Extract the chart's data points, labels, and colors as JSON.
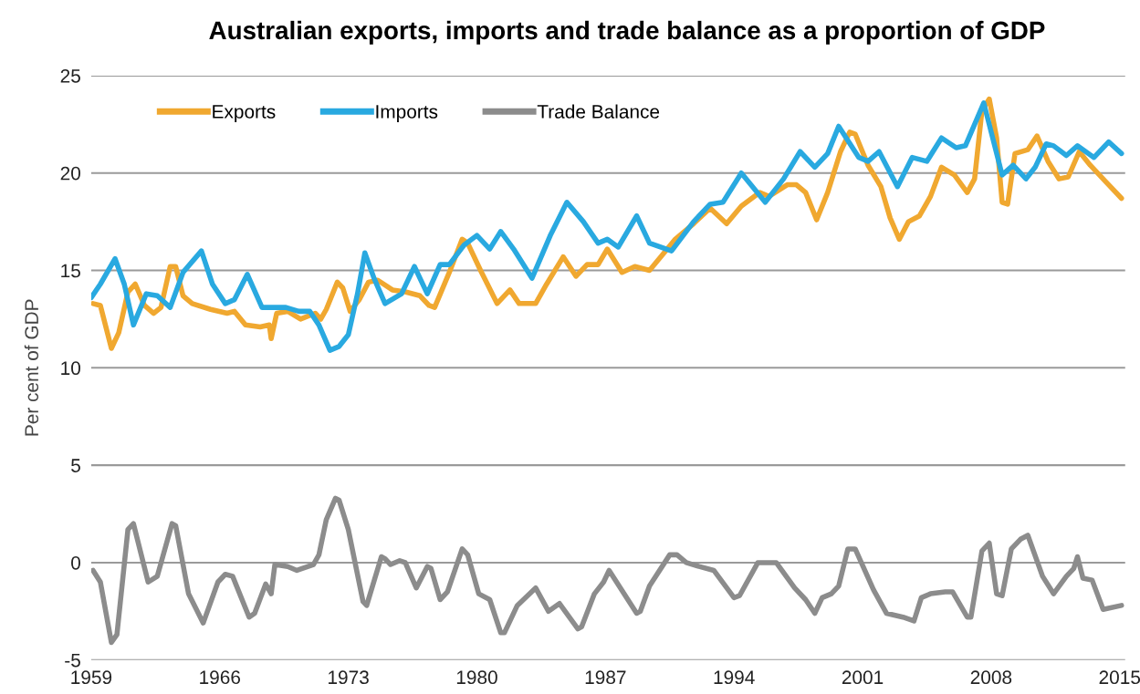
{
  "chart_data": {
    "type": "line",
    "title": "Australian exports, imports and trade balance as a proportion of GDP",
    "ylabel": "Per cent of GDP",
    "xlim": [
      1959,
      2015.3
    ],
    "xticks": [
      1959,
      1966,
      1973,
      1980,
      1987,
      1994,
      2001,
      2008,
      2015
    ],
    "ylim": [
      -5,
      25
    ],
    "yticks": [
      -5,
      0,
      5,
      10,
      15,
      20,
      25
    ],
    "grid": "y",
    "legend": "top left",
    "marker": "none",
    "line_style": "solid",
    "series": [
      {
        "name": "Exports",
        "color": "#f0a830",
        "x": [
          1959.1,
          1959.5,
          1960.1,
          1960.5,
          1961.0,
          1961.4,
          1961.9,
          1962.4,
          1962.8,
          1963.3,
          1963.6,
          1964.0,
          1964.5,
          1965.5,
          1966.4,
          1966.8,
          1967.4,
          1968.2,
          1968.7,
          1968.8,
          1969.1,
          1969.7,
          1970.4,
          1971.2,
          1971.5,
          1971.8,
          1972.4,
          1972.7,
          1973.1,
          1973.6,
          1974.1,
          1974.6,
          1975.4,
          1976.1,
          1976.9,
          1977.4,
          1977.7,
          1978.5,
          1979.2,
          1979.5,
          1980.2,
          1981.1,
          1981.8,
          1982.3,
          1983.2,
          1983.8,
          1984.7,
          1985.4,
          1986.0,
          1986.6,
          1987.1,
          1987.9,
          1988.6,
          1989.4,
          1990.1,
          1990.8,
          1991.8,
          1992.7,
          1993.6,
          1994.4,
          1995.4,
          1995.9,
          1996.9,
          1997.4,
          1997.9,
          1998.5,
          1999.1,
          1999.8,
          2000.3,
          2000.6,
          2001.3,
          2002.0,
          2002.5,
          2003.0,
          2003.5,
          2004.1,
          2004.7,
          2005.3,
          2006.0,
          2006.7,
          2007.1,
          2007.5,
          2007.9,
          2008.3,
          2008.6,
          2008.9,
          2009.3,
          2010.0,
          2010.5,
          2011.1,
          2011.7,
          2012.2,
          2012.8,
          2013.4,
          2014.2,
          2015.1
        ],
        "values": [
          13.3,
          13.2,
          11.0,
          11.8,
          13.9,
          14.3,
          13.2,
          12.8,
          13.1,
          15.2,
          15.2,
          13.7,
          13.3,
          13.0,
          12.8,
          12.9,
          12.2,
          12.1,
          12.2,
          11.5,
          12.8,
          12.9,
          12.5,
          12.8,
          12.5,
          13.0,
          14.4,
          14.1,
          12.9,
          13.5,
          14.4,
          14.5,
          14.0,
          13.9,
          13.7,
          13.2,
          13.1,
          14.9,
          16.6,
          16.4,
          15.0,
          13.3,
          14.0,
          13.3,
          13.3,
          14.3,
          15.7,
          14.7,
          15.3,
          15.3,
          16.1,
          14.9,
          15.2,
          15.0,
          15.8,
          16.6,
          17.4,
          18.2,
          17.4,
          18.3,
          19.0,
          18.8,
          19.4,
          19.4,
          19.0,
          17.6,
          19.0,
          21.1,
          22.1,
          22.0,
          20.4,
          19.3,
          17.7,
          16.6,
          17.5,
          17.8,
          18.8,
          20.3,
          19.9,
          19.0,
          19.7,
          23.2,
          23.8,
          21.8,
          18.5,
          18.4,
          21.0,
          21.2,
          21.9,
          20.6,
          19.7,
          19.8,
          21.1,
          20.4,
          19.6,
          18.7
        ]
      },
      {
        "name": "Imports",
        "color": "#29a9e0",
        "x": [
          1959.0,
          1959.5,
          1960.3,
          1960.8,
          1961.3,
          1962.0,
          1962.6,
          1963.3,
          1964.0,
          1965.0,
          1965.6,
          1966.3,
          1966.8,
          1967.5,
          1968.3,
          1968.9,
          1969.6,
          1970.3,
          1970.9,
          1971.4,
          1972.0,
          1972.5,
          1973.0,
          1973.5,
          1973.9,
          1974.4,
          1975.0,
          1975.9,
          1976.6,
          1977.3,
          1978.0,
          1978.5,
          1979.3,
          1980.0,
          1980.7,
          1981.3,
          1982.0,
          1983.0,
          1984.0,
          1984.9,
          1985.8,
          1986.6,
          1987.1,
          1987.7,
          1988.7,
          1989.4,
          1990.6,
          1991.8,
          1992.7,
          1993.4,
          1994.4,
          1995.7,
          1996.7,
          1997.6,
          1998.4,
          1999.1,
          1999.7,
          2000.8,
          2001.3,
          2001.9,
          2002.9,
          2003.7,
          2004.5,
          2005.3,
          2006.1,
          2006.6,
          2007.6,
          2008.6,
          2009.2,
          2009.9,
          2010.4,
          2011.0,
          2011.4,
          2012.1,
          2012.7,
          2013.6,
          2014.4,
          2015.1
        ],
        "values": [
          13.6,
          14.3,
          15.6,
          14.3,
          12.2,
          13.8,
          13.7,
          13.1,
          14.9,
          16.0,
          14.3,
          13.3,
          13.5,
          14.8,
          13.1,
          13.1,
          13.1,
          12.9,
          12.9,
          12.2,
          10.9,
          11.1,
          11.7,
          13.8,
          15.9,
          14.6,
          13.3,
          13.8,
          15.2,
          13.8,
          15.3,
          15.3,
          16.3,
          16.8,
          16.1,
          17.0,
          16.1,
          14.6,
          16.8,
          18.5,
          17.5,
          16.4,
          16.6,
          16.2,
          17.8,
          16.4,
          16.0,
          17.5,
          18.4,
          18.5,
          20.0,
          18.5,
          19.7,
          21.1,
          20.3,
          21.0,
          22.4,
          20.8,
          20.6,
          21.1,
          19.3,
          20.8,
          20.6,
          21.8,
          21.3,
          21.4,
          23.6,
          19.9,
          20.4,
          19.7,
          20.3,
          21.5,
          21.4,
          20.9,
          21.4,
          20.8,
          21.6,
          21.0
        ]
      },
      {
        "name": "Trade Balance",
        "color": "#8c8c8c",
        "x": [
          1959.1,
          1959.5,
          1960.1,
          1960.4,
          1961.0,
          1961.3,
          1962.1,
          1962.6,
          1963.4,
          1963.6,
          1964.3,
          1965.1,
          1965.9,
          1966.3,
          1966.7,
          1967.6,
          1967.9,
          1968.5,
          1968.8,
          1969.0,
          1969.7,
          1970.2,
          1971.1,
          1971.4,
          1971.8,
          1972.3,
          1972.5,
          1973.0,
          1973.8,
          1974.0,
          1974.8,
          1975.0,
          1975.3,
          1975.8,
          1976.1,
          1976.7,
          1977.3,
          1977.5,
          1978.0,
          1978.4,
          1979.2,
          1979.5,
          1980.1,
          1980.7,
          1981.3,
          1981.5,
          1982.2,
          1983.2,
          1983.9,
          1984.5,
          1985.5,
          1985.7,
          1986.4,
          1986.9,
          1987.2,
          1988.7,
          1988.9,
          1989.4,
          1990.5,
          1990.9,
          1991.4,
          1992.1,
          1992.9,
          1994.0,
          1994.3,
          1995.3,
          1996.3,
          1997.3,
          1997.9,
          1998.4,
          1998.8,
          1999.3,
          1999.7,
          2000.2,
          2000.6,
          2001.6,
          2002.3,
          2003.2,
          2003.8,
          2004.2,
          2004.7,
          2005.5,
          2005.9,
          2006.7,
          2006.9,
          2007.5,
          2007.9,
          2008.3,
          2008.6,
          2009.1,
          2009.6,
          2010.0,
          2010.8,
          2011.4,
          2012.1,
          2012.5,
          2012.7,
          2013.0,
          2013.5,
          2014.1,
          2015.1
        ],
        "values": [
          -0.4,
          -1.0,
          -4.1,
          -3.7,
          1.7,
          2.0,
          -1.0,
          -0.7,
          2.0,
          1.9,
          -1.6,
          -3.1,
          -1.0,
          -0.6,
          -0.7,
          -2.8,
          -2.6,
          -1.1,
          -1.6,
          -0.1,
          -0.2,
          -0.4,
          -0.1,
          0.4,
          2.2,
          3.3,
          3.2,
          1.7,
          -2.0,
          -2.2,
          0.3,
          0.2,
          -0.1,
          0.1,
          0.0,
          -1.3,
          -0.2,
          -0.3,
          -1.9,
          -1.5,
          0.7,
          0.4,
          -1.6,
          -1.9,
          -3.6,
          -3.6,
          -2.2,
          -1.3,
          -2.5,
          -2.1,
          -3.4,
          -3.3,
          -1.6,
          -1.0,
          -0.4,
          -2.6,
          -2.5,
          -1.2,
          0.4,
          0.4,
          0.0,
          -0.2,
          -0.4,
          -1.8,
          -1.7,
          0.0,
          0.0,
          -1.3,
          -1.9,
          -2.6,
          -1.8,
          -1.6,
          -1.2,
          0.7,
          0.7,
          -1.4,
          -2.6,
          -2.8,
          -3.0,
          -1.8,
          -1.6,
          -1.5,
          -1.5,
          -2.8,
          -2.8,
          0.6,
          1.0,
          -1.6,
          -1.7,
          0.7,
          1.2,
          1.4,
          -0.7,
          -1.6,
          -0.7,
          -0.3,
          0.3,
          -0.8,
          -0.9,
          -2.4,
          -2.2
        ]
      }
    ]
  }
}
